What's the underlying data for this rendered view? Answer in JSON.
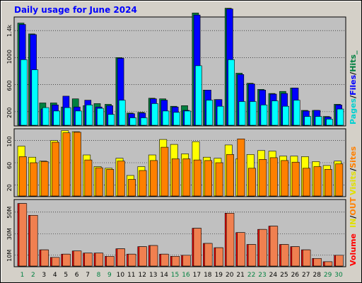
{
  "chart_data": {
    "type": "bar",
    "title": "Daily usage for June 2024",
    "days": [
      "1",
      "2",
      "3",
      "4",
      "5",
      "6",
      "7",
      "8",
      "9",
      "10",
      "11",
      "12",
      "13",
      "14",
      "15",
      "16",
      "17",
      "18",
      "19",
      "20",
      "21",
      "22",
      "23",
      "24",
      "25",
      "26",
      "27",
      "28",
      "29",
      "30"
    ],
    "weekend_days": [
      "1",
      "2",
      "8",
      "9",
      "15",
      "16",
      "22",
      "23",
      "29",
      "30"
    ],
    "colors": {
      "hits": "#008040",
      "files": "#0000ff",
      "pages": "#00ffff",
      "visits": "#ffff00",
      "sites": "#ff8000",
      "kbytes": "#ff0000",
      "weekday_label": "#000000",
      "weekend_label": "#008040",
      "title": "#0000ff",
      "plot_bg": "#c0c0c0"
    },
    "panels": {
      "top": {
        "ylim": [
          0,
          1590
        ],
        "ticks": [
          "200",
          "600",
          "1000",
          "1.4k"
        ],
        "tick_values": [
          200,
          600,
          1000,
          1400
        ],
        "legend": {
          "pages": "Pages",
          "sep1": "/",
          "files": "Files",
          "sep2": "/",
          "hits": "Hits",
          "tail": "_"
        },
        "hits": [
          1510,
          1350,
          330,
          330,
          270,
          390,
          290,
          320,
          310,
          1000,
          180,
          190,
          400,
          390,
          280,
          290,
          1660,
          520,
          380,
          1730,
          770,
          620,
          530,
          470,
          500,
          550,
          220,
          220,
          130,
          310
        ],
        "files": [
          1490,
          1340,
          240,
          300,
          430,
          270,
          370,
          270,
          290,
          990,
          170,
          180,
          390,
          370,
          270,
          220,
          1630,
          520,
          380,
          1720,
          750,
          610,
          520,
          460,
          470,
          550,
          210,
          220,
          120,
          300
        ],
        "pages": [
          970,
          820,
          260,
          210,
          260,
          210,
          300,
          250,
          160,
          370,
          110,
          110,
          320,
          210,
          190,
          210,
          880,
          370,
          280,
          970,
          350,
          350,
          300,
          360,
          280,
          370,
          130,
          130,
          90,
          240
        ]
      },
      "middle": {
        "ylim": [
          0,
          120
        ],
        "ticks": [
          "20",
          "60",
          "100"
        ],
        "tick_values": [
          20,
          60,
          100
        ],
        "legend": {
          "visits": "Visits",
          "sep": "/",
          "sites": "Sites"
        },
        "visits": [
          90,
          70,
          63,
          100,
          118,
          116,
          74,
          53,
          50,
          68,
          37,
          53,
          74,
          102,
          93,
          76,
          98,
          70,
          68,
          92,
          67,
          75,
          82,
          81,
          72,
          72,
          71,
          62,
          55,
          63
        ],
        "sites": [
          71,
          60,
          62,
          97,
          114,
          115,
          65,
          51,
          48,
          63,
          30,
          46,
          64,
          88,
          67,
          67,
          65,
          64,
          60,
          75,
          103,
          50,
          66,
          69,
          64,
          61,
          50,
          53,
          48,
          58
        ]
      },
      "bottom": {
        "ylim": [
          0,
          61
        ],
        "ticks": [
          "10M",
          "30M",
          "50M"
        ],
        "tick_values": [
          10,
          30,
          50
        ],
        "legend": {
          "volume": "Volume",
          "in": "IN",
          "sep": "/",
          "out": "OUT"
        },
        "kbytes": [
          58,
          47,
          15,
          8,
          11,
          14,
          12,
          12,
          9,
          16,
          11,
          18,
          19,
          11,
          9,
          10,
          35,
          21,
          17,
          49,
          31,
          20,
          34,
          37,
          20,
          18,
          15,
          7,
          4,
          10
        ]
      }
    }
  }
}
